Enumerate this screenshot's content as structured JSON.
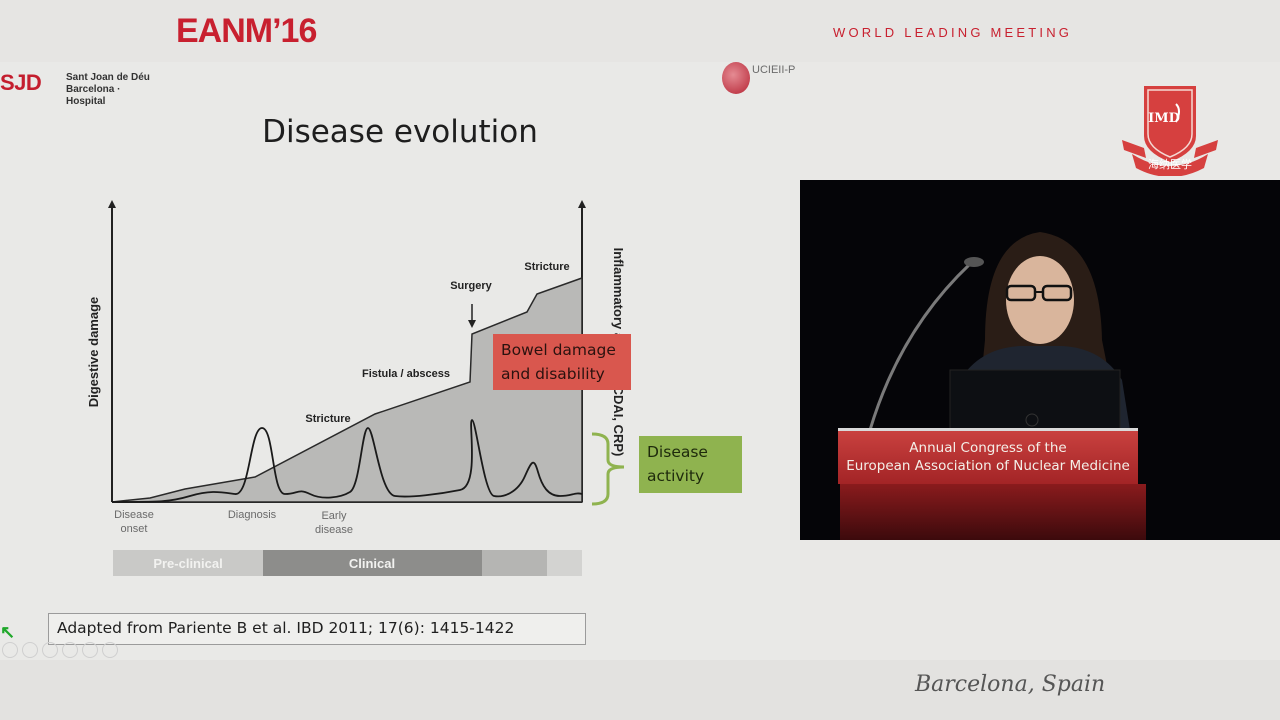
{
  "header": {
    "conference_logo": "EANM’16",
    "tagline": "WORLD LEADING MEETING",
    "emblem_text": "IMD",
    "emblem_subtext": "海纳医学"
  },
  "slide": {
    "left_logo": {
      "mark": "SJD",
      "line1": "Sant Joan de Déu",
      "line2": "Barcelona · Hospital"
    },
    "right_logo": "UCIEII-P",
    "title": "Disease evolution",
    "y_axis_left_label": "Digestive damage",
    "y_axis_right_label": "Inflammatory activity (CDAI, CRP)",
    "event_labels": [
      "Stricture",
      "Fistula / abscess",
      "Surgery",
      "Stricture"
    ],
    "x_labels": [
      {
        "line1": "Disease",
        "line2": "onset"
      },
      {
        "line1": "Diagnosis",
        "line2": ""
      },
      {
        "line1": "Early",
        "line2": "disease"
      }
    ],
    "phase_bar": [
      "Pre-clinical",
      "Clinical",
      "",
      ""
    ],
    "callout_damage": {
      "line1": "Bowel damage",
      "line2": "and disability"
    },
    "callout_activity": {
      "line1": "Disease",
      "line2": "activity"
    },
    "citation": "Adapted from Pariente B et al. IBD 2011; 17(6): 1415-1422"
  },
  "video": {
    "banner_line1": "Annual Congress of the",
    "banner_line2": "European Association of Nuclear Medicine"
  },
  "footer": {
    "city": "Barcelona, Spain"
  },
  "colors": {
    "brand_red": "#c8202f",
    "callout_red": "#d9574e",
    "callout_green": "#8fb34f"
  }
}
